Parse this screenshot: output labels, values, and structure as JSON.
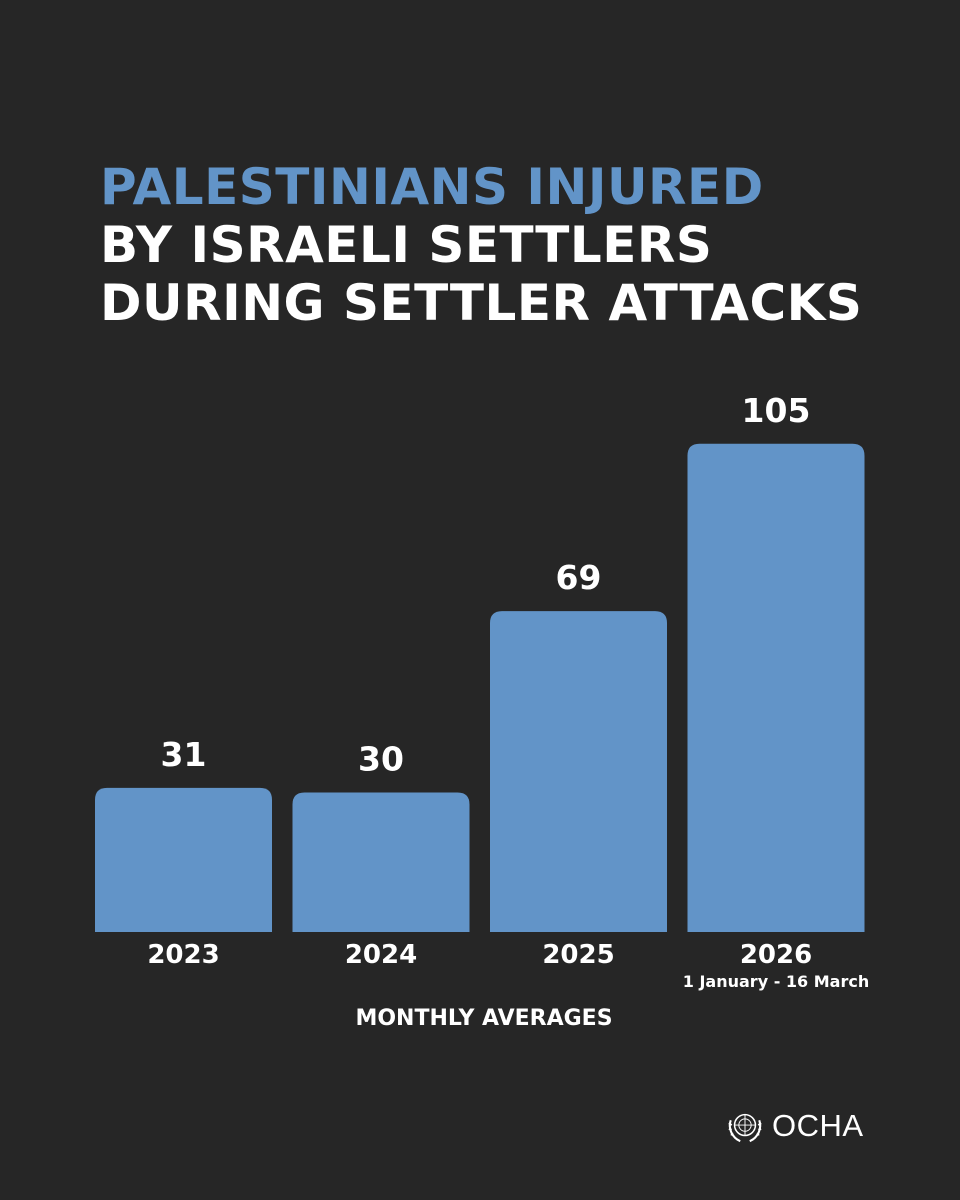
{
  "title": {
    "line1": "PALESTINIANS INJURED",
    "line2": "BY ISRAELI SETTLERS",
    "line3": "DURING SETTLER ATTACKS"
  },
  "chart_data": {
    "type": "bar",
    "categories": [
      "2023",
      "2024",
      "2025",
      "2026"
    ],
    "category_sublabels": [
      "",
      "",
      "",
      "1 January - 16 March"
    ],
    "values": [
      31,
      30,
      69,
      105
    ],
    "xlabel": "MONTHLY AVERAGES",
    "ylabel": "",
    "grid": false,
    "bar_color": "#6294c8"
  },
  "logo": {
    "text": "OCHA",
    "icon": "un-emblem-icon"
  },
  "colors": {
    "background": "#262626",
    "accent": "#6294c8",
    "text": "#ffffff"
  }
}
